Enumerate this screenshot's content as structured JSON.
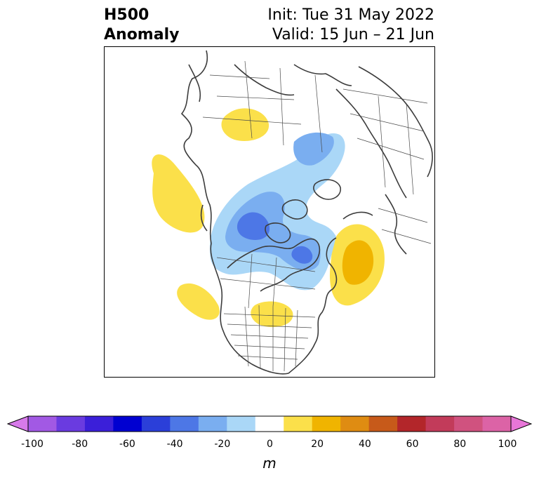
{
  "header": {
    "title_line1": "H500",
    "title_line2": "Anomaly",
    "init": "Init: Tue 31 May 2022",
    "valid": "Valid: 15 Jun – 21 Jun"
  },
  "colorbar": {
    "units": "m",
    "ticks": [
      "-100",
      "-80",
      "-60",
      "-40",
      "-20",
      "0",
      "20",
      "40",
      "60",
      "80",
      "100"
    ],
    "colors": [
      "#d77aea",
      "#a259e4",
      "#6a3be0",
      "#3b1fd9",
      "#0000d1",
      "#2b3fd9",
      "#4d77e6",
      "#7aaef0",
      "#aad7f7",
      "#ffffff",
      "#fbe04a",
      "#f0b400",
      "#df8c12",
      "#c75a1a",
      "#b3262a",
      "#c23b5a",
      "#d0527f",
      "#dc63a6",
      "#e876d8"
    ]
  },
  "map": {
    "anomaly_colors": {
      "neg_light": "#aad7f7",
      "neg_mid": "#7aaef0",
      "neg_strong": "#4d77e6",
      "pos_light": "#fbe04a",
      "pos_mid": "#f0b400"
    }
  }
}
